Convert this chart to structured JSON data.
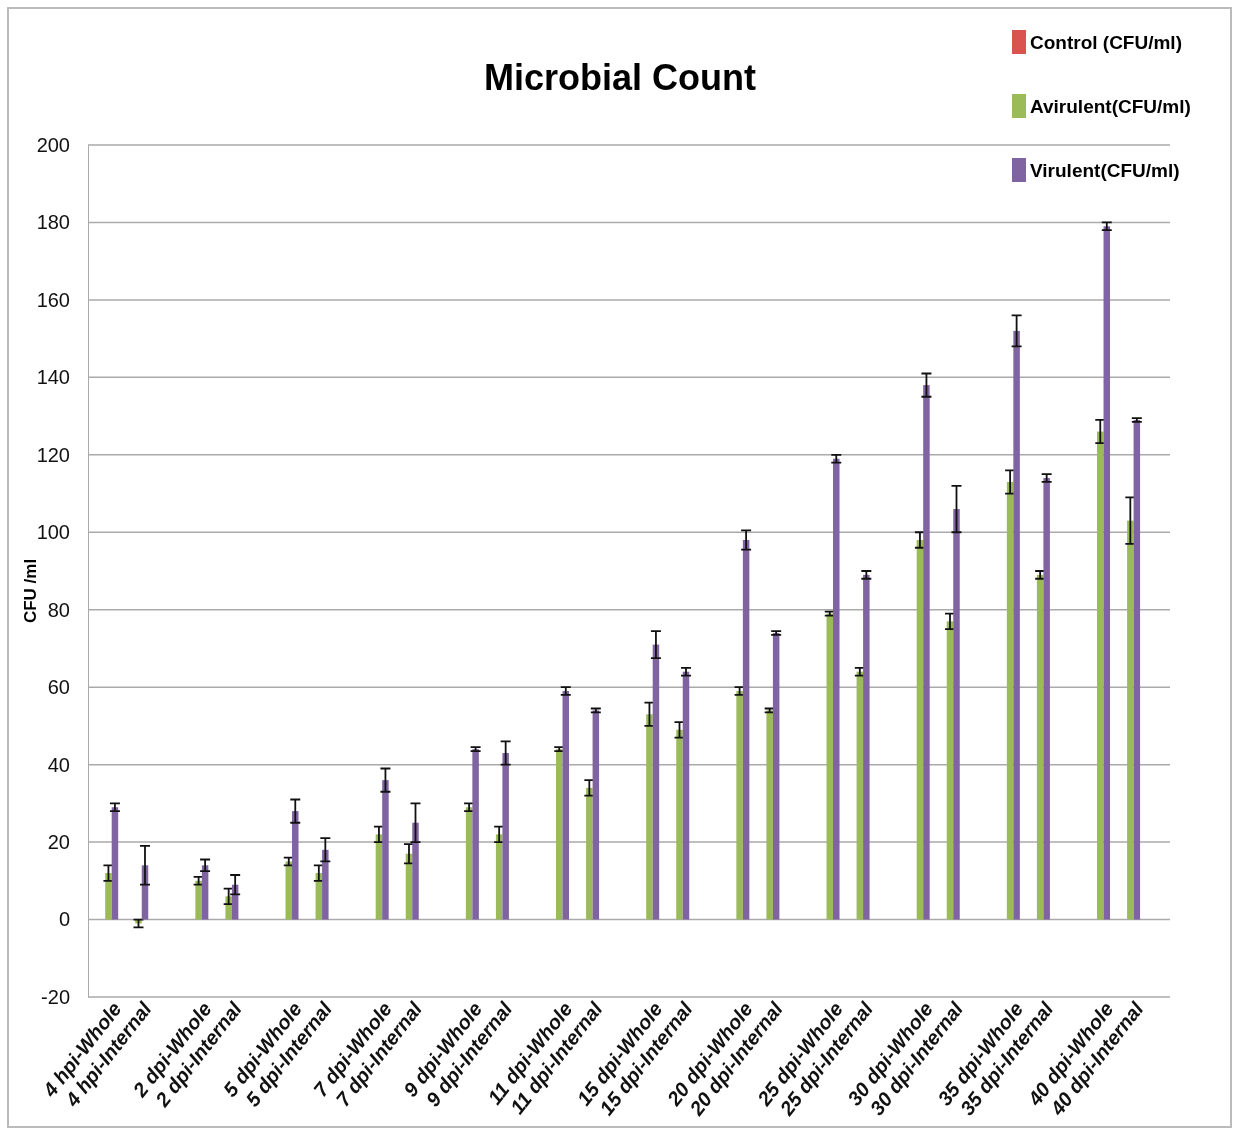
{
  "chart_data": {
    "type": "bar",
    "title": "Microbial Count",
    "ylabel": "CFU /ml",
    "categories": [
      "4 hpi-Whole",
      "4 hpi-Internal",
      "2 dpi-Whole",
      "2 dpi-Internal",
      "5 dpi-Whole",
      "5 dpi-Internal",
      "7 dpi-Whole",
      "7 dpi-Internal",
      "9 dpi-Whole",
      "9 dpi-Internal",
      "11 dpi-Whole",
      "11 dpi-Internal",
      "15 dpi-Whole",
      "15 dpi-Internal",
      "20 dpi-Whole",
      "20 dpi-Internal",
      "25 dpi-Whole",
      "25 dpi-Internal",
      "30 dpi-Whole",
      "30 dpi-Internal",
      "35 dpi-Whole",
      "35 dpi-Internal",
      "40 dpi-Whole",
      "40 dpi-Internal"
    ],
    "series": [
      {
        "name": "Control  (CFU/ml)",
        "color": "#d9534f",
        "values": [
          0,
          0,
          0,
          0,
          0,
          0,
          0,
          0,
          0,
          0,
          0,
          0,
          0,
          0,
          0,
          0,
          0,
          0,
          0,
          0,
          0,
          0,
          0,
          0
        ]
      },
      {
        "name": "Avirulent(CFU/ml)",
        "color": "#9bbb59",
        "values": [
          12,
          -1,
          10,
          6,
          15,
          12,
          22,
          17,
          29,
          22,
          44,
          34,
          53,
          49,
          59,
          54,
          79,
          64,
          98,
          77,
          113,
          89,
          126,
          103
        ],
        "errors": [
          2,
          1,
          1,
          2,
          1,
          2,
          2,
          2.5,
          1,
          2,
          0.5,
          2,
          3,
          2,
          1,
          0.5,
          0.5,
          1,
          2,
          2,
          3,
          1,
          3,
          6
        ]
      },
      {
        "name": "Virulent(CFU/ml)",
        "color": "#8064a2",
        "values": [
          29,
          14,
          14,
          9,
          28,
          18,
          36,
          25,
          44,
          43,
          59,
          54,
          71,
          64,
          98,
          74,
          119,
          89,
          138,
          106,
          152,
          114,
          179,
          129
        ],
        "errors": [
          1,
          5,
          1.5,
          2.5,
          3,
          3,
          3,
          5,
          0.5,
          3,
          1,
          0.5,
          3.5,
          1,
          2.5,
          0.5,
          1,
          1,
          3,
          6,
          4,
          1,
          1,
          0.5
        ]
      }
    ],
    "ylim": [
      -20,
      200
    ],
    "yticks": [
      -20,
      0,
      20,
      40,
      60,
      80,
      100,
      120,
      140,
      160,
      180,
      200
    ],
    "grid": "y",
    "legend": "top right"
  }
}
